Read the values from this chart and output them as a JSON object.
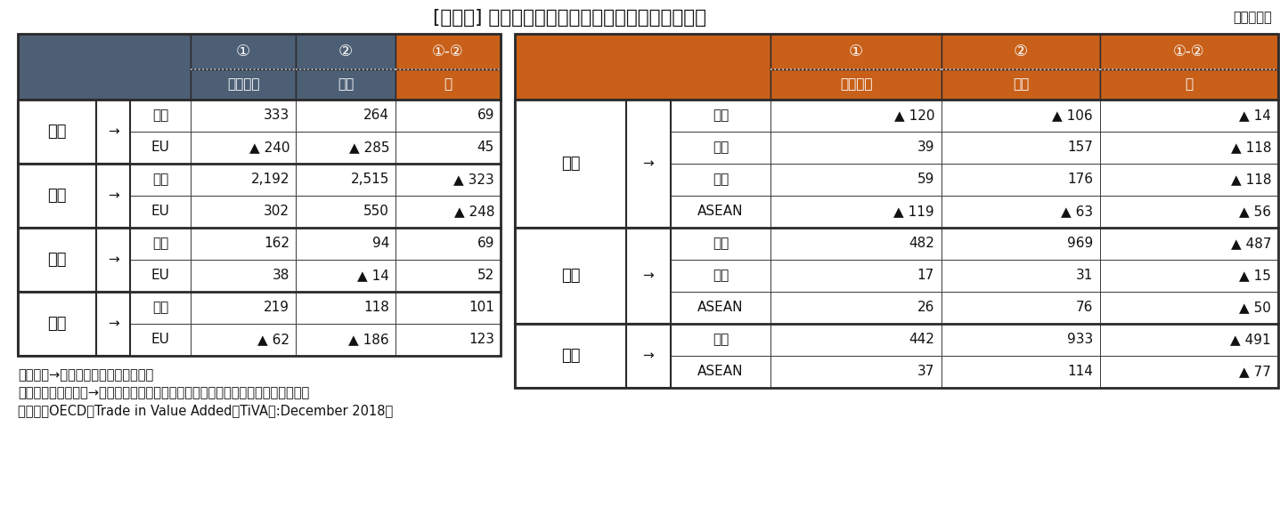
{
  "title": "[図表１] 名目および付加価値で見た貿易収支の構造",
  "unit": "（億ドル）",
  "note1": "（注）「→」は、輸出の方向を示す。",
  "note2": "　　例えば、「日本→米国」の場合には、日本の対米貿易の貿易収支を意味する。",
  "note3": "（資料）OECD「Trade in Value Added（TiVA）:December 2018」",
  "header_bg_blue": "#4d5f75",
  "header_bg_orange": "#c8601a",
  "row_bg_white": "#ffffff",
  "border_color": "#2a2a2a",
  "left_table": {
    "rows": [
      {
        "from": "日本",
        "arrow": "→",
        "to": "米国",
        "v1": "333",
        "v2": "264",
        "v3": "69"
      },
      {
        "from": "",
        "arrow": "",
        "to": "EU",
        "v1": "▲ 240",
        "v2": "▲ 285",
        "v3": "45"
      },
      {
        "from": "中国",
        "arrow": "→",
        "to": "米国",
        "v1": "2,192",
        "v2": "2,515",
        "v3": "▲ 323"
      },
      {
        "from": "",
        "arrow": "",
        "to": "EU",
        "v1": "302",
        "v2": "550",
        "v3": "▲ 248"
      },
      {
        "from": "台湾",
        "arrow": "→",
        "to": "米国",
        "v1": "162",
        "v2": "94",
        "v3": "69"
      },
      {
        "from": "",
        "arrow": "",
        "to": "EU",
        "v1": "38",
        "v2": "▲ 14",
        "v3": "52"
      },
      {
        "from": "韓国",
        "arrow": "→",
        "to": "米国",
        "v1": "219",
        "v2": "118",
        "v3": "101"
      },
      {
        "from": "",
        "arrow": "",
        "to": "EU",
        "v1": "▲ 62",
        "v2": "▲ 186",
        "v3": "123"
      }
    ],
    "group_rows": [
      2,
      2,
      2,
      2
    ]
  },
  "right_table": {
    "rows": [
      {
        "from": "日本",
        "arrow": "→",
        "to": "中国",
        "v1": "▲ 120",
        "v2": "▲ 106",
        "v3": "▲ 14"
      },
      {
        "from": "",
        "arrow": "",
        "to": "韓国",
        "v1": "39",
        "v2": "157",
        "v3": "▲ 118"
      },
      {
        "from": "",
        "arrow": "",
        "to": "台湾",
        "v1": "59",
        "v2": "176",
        "v3": "▲ 118"
      },
      {
        "from": "",
        "arrow": "",
        "to": "ASEAN",
        "v1": "▲ 119",
        "v2": "▲ 63",
        "v3": "▲ 56"
      },
      {
        "from": "台湾",
        "arrow": "→",
        "to": "中国",
        "v1": "482",
        "v2": "969",
        "v3": "▲ 487"
      },
      {
        "from": "",
        "arrow": "",
        "to": "韓国",
        "v1": "17",
        "v2": "31",
        "v3": "▲ 15"
      },
      {
        "from": "",
        "arrow": "",
        "to": "ASEAN",
        "v1": "26",
        "v2": "76",
        "v3": "▲ 50"
      },
      {
        "from": "韓国",
        "arrow": "→",
        "to": "中国",
        "v1": "442",
        "v2": "933",
        "v3": "▲ 491"
      },
      {
        "from": "",
        "arrow": "",
        "to": "ASEAN",
        "v1": "37",
        "v2": "114",
        "v3": "▲ 77"
      }
    ],
    "group_rows": [
      4,
      3,
      2
    ]
  }
}
